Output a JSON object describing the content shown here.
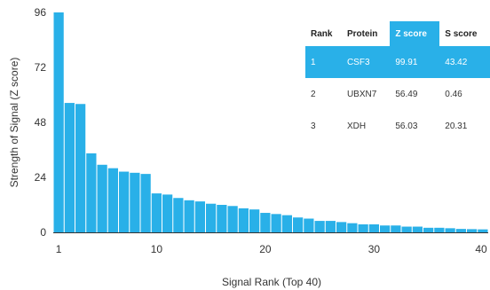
{
  "colors": {
    "bar": "#29b0e8",
    "axis": "#333333",
    "highlight": "#29b0e8"
  },
  "chart_data": {
    "type": "bar",
    "x": [
      1,
      2,
      3,
      4,
      5,
      6,
      7,
      8,
      9,
      10,
      11,
      12,
      13,
      14,
      15,
      16,
      17,
      18,
      19,
      20,
      21,
      22,
      23,
      24,
      25,
      26,
      27,
      28,
      29,
      30,
      31,
      32,
      33,
      34,
      35,
      36,
      37,
      38,
      39,
      40
    ],
    "values": [
      99.91,
      56.49,
      56.03,
      34.5,
      29.5,
      28,
      26.5,
      26,
      25.5,
      17,
      16.5,
      15,
      14,
      13.5,
      12.5,
      12,
      11.5,
      10.5,
      10,
      8.5,
      8,
      7.5,
      6.5,
      6,
      5,
      5,
      4.5,
      4,
      3.5,
      3.5,
      3,
      3,
      2.5,
      2.5,
      2,
      2,
      1.8,
      1.5,
      1.4,
      1.3
    ],
    "xlabel": "Signal Rank (Top 40)",
    "ylabel": "Strength of Signal (Z score)",
    "xlim": [
      0.5,
      40.5
    ],
    "ylim": [
      0,
      96
    ],
    "yticks": [
      0,
      24,
      48,
      72,
      96
    ],
    "xticks": [
      1,
      10,
      20,
      30,
      40
    ],
    "grid": false
  },
  "table": {
    "headers": [
      "Rank",
      "Protein",
      "Z score",
      "S score"
    ],
    "highlighted_columns": [
      2,
      3
    ],
    "selected_row": 0,
    "rows": [
      [
        "1",
        "CSF3",
        "99.91",
        "43.42"
      ],
      [
        "2",
        "UBXN7",
        "56.49",
        "0.46"
      ],
      [
        "3",
        "XDH",
        "56.03",
        "20.31"
      ]
    ]
  }
}
